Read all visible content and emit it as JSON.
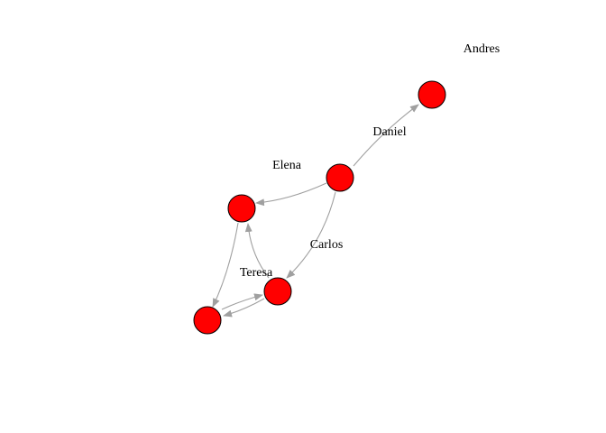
{
  "graph": {
    "nodes": [
      {
        "id": "n-upper-right",
        "label": ""
      },
      {
        "id": "n-center",
        "label": ""
      },
      {
        "id": "n-left",
        "label": ""
      },
      {
        "id": "n-lower-mid",
        "label": ""
      },
      {
        "id": "n-bottom-left",
        "label": ""
      }
    ],
    "edges": [
      {
        "from": "n-center",
        "to": "n-upper-right"
      },
      {
        "from": "n-center",
        "to": "n-left"
      },
      {
        "from": "n-center",
        "to": "n-lower-mid"
      },
      {
        "from": "n-left",
        "to": "n-bottom-left"
      },
      {
        "from": "n-lower-mid",
        "to": "n-left"
      },
      {
        "from": "n-lower-mid",
        "to": "n-bottom-left"
      },
      {
        "from": "n-bottom-left",
        "to": "n-lower-mid"
      }
    ],
    "labels": {
      "andres": "Andres",
      "daniel": "Daniel",
      "elena": "Elena",
      "carlos": "Carlos",
      "teresa": "Teresa"
    },
    "colors": {
      "node_fill": "#ff0000",
      "node_stroke": "#000000",
      "edge": "#a0a0a0"
    }
  }
}
